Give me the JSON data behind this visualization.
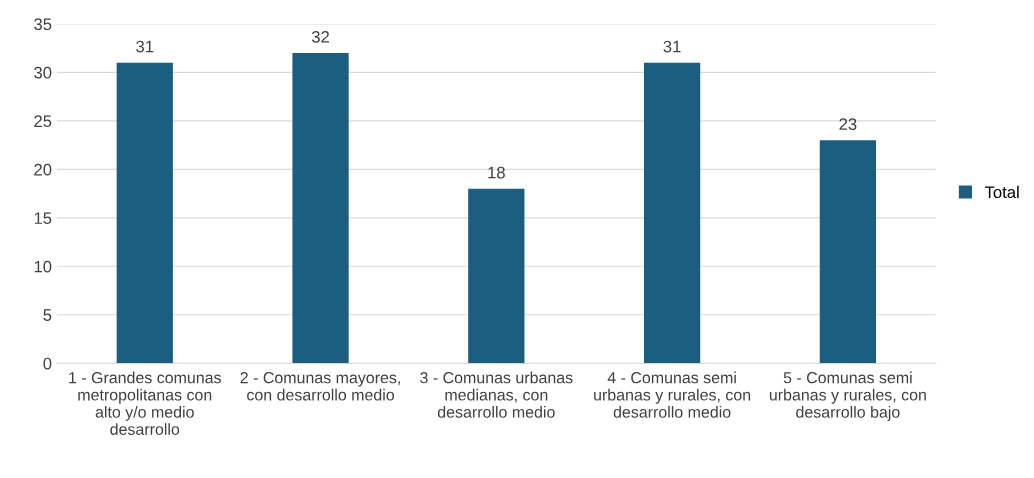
{
  "chart_data": {
    "type": "bar",
    "categories": [
      "1 - Grandes comunas metropolitanas con alto y/o medio desarrollo",
      "2 - Comunas mayores, con desarrollo medio",
      "3 - Comunas urbanas medianas, con desarrollo medio",
      "4 - Comunas semi urbanas y rurales, con desarrollo medio",
      "5 - Comunas semi urbanas y rurales, con desarrollo bajo"
    ],
    "series": [
      {
        "name": "Total",
        "color": "#1b5e80",
        "values": [
          31,
          32,
          18,
          31,
          23
        ]
      }
    ],
    "ylim": [
      0,
      35
    ],
    "yticks": [
      0,
      5,
      10,
      15,
      20,
      25,
      30,
      35
    ],
    "grid": "y",
    "legend": "right",
    "data_labels": true
  }
}
